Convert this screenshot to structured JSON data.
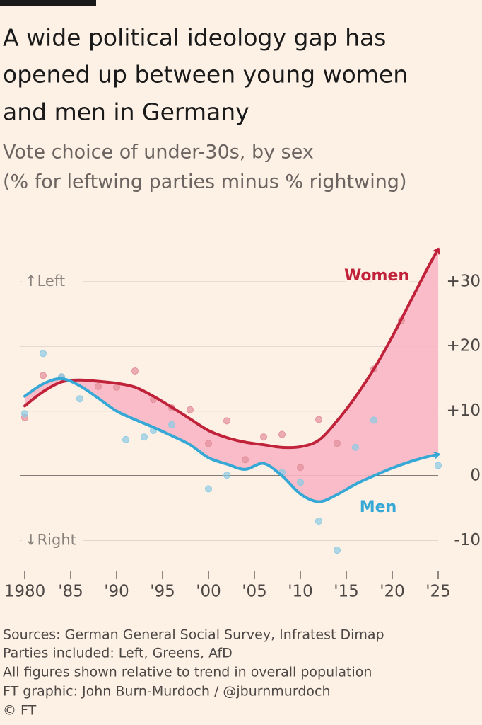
{
  "chart_data": {
    "type": "line",
    "title": [
      "A wide political ideology gap has",
      "opened up between young women",
      "and men in Germany"
    ],
    "subtitle": [
      "Vote choice of under-30s, by sex",
      "(% for leftwing parties minus % rightwing)"
    ],
    "annotations": [
      "↑Left",
      "↓Right"
    ],
    "notes": [
      "Sources: German General Social Survey, Infratest Dimap",
      "Parties included: Left, Greens, AfD",
      "All figures shown relative to trend in overall population",
      "FT graphic: John Burn-Murdoch / @jburnmurdoch",
      "© FT"
    ],
    "xlim": [
      1980,
      2025
    ],
    "xticks": [
      1980,
      {
        "value": 1985,
        "label": "'85"
      },
      {
        "value": 1990,
        "label": "'90"
      },
      {
        "value": 1995,
        "label": "'95"
      },
      {
        "value": 2000,
        "label": "'00"
      },
      {
        "value": 2005,
        "label": "'05"
      },
      {
        "value": 2010,
        "label": "'10"
      },
      {
        "value": 2015,
        "label": "'15"
      },
      {
        "value": 2020,
        "label": "'20"
      },
      {
        "value": 2025,
        "label": "'25"
      }
    ],
    "ylim": [
      -14,
      36
    ],
    "yticks": [
      -10,
      0,
      {
        "value": 10,
        "label": "+10"
      },
      {
        "value": 20,
        "label": "+20"
      },
      {
        "value": 30,
        "label": "+30"
      }
    ],
    "grid": true,
    "series": [
      {
        "type": "scatter",
        "color": "#e3909a",
        "x": [
          1980,
          1982,
          1984,
          1988,
          1990,
          1992,
          1994,
          1996,
          1998,
          2000,
          2002,
          2004,
          2006,
          2008,
          2010,
          2012,
          2014,
          2018,
          2021
        ],
        "values": [
          9,
          15.5,
          15.3,
          13.8,
          13.7,
          16.2,
          11.8,
          10.5,
          10.2,
          5,
          8.5,
          2.5,
          6,
          6.4,
          1.3,
          8.7,
          5,
          16.5,
          24
        ]
      },
      {
        "type": "scatter",
        "color": "#8ccbe3",
        "x": [
          1980,
          1982,
          1984,
          1986,
          1991,
          1993,
          1994,
          1996,
          2000,
          2002,
          2008,
          2010,
          2012,
          2014,
          2016,
          2018,
          2025
        ],
        "values": [
          9.6,
          18.9,
          15.3,
          11.9,
          5.6,
          6,
          7,
          7.9,
          -2,
          0.1,
          0.5,
          -1,
          -7,
          -11.5,
          4.4,
          8.6,
          1.6
        ]
      },
      {
        "type": "line",
        "name": "Women",
        "color": "#c0223a",
        "x": [
          1980,
          1982,
          1984,
          1986,
          1988,
          1990,
          1992,
          1994,
          1996,
          1998,
          2000,
          2002,
          2004,
          2006,
          2008,
          2010,
          2012,
          2014,
          2016,
          2018,
          2020,
          2022,
          2024,
          2025
        ],
        "values": [
          10.8,
          13,
          14.5,
          14.8,
          14.6,
          14.3,
          13.7,
          12.3,
          10.6,
          8.8,
          7,
          5.9,
          5.2,
          4.8,
          4.4,
          4.5,
          5.5,
          8.5,
          12.2,
          16.5,
          21.5,
          27,
          32.5,
          35
        ]
      },
      {
        "type": "line",
        "name": "Men",
        "color": "#35a8d6",
        "x": [
          1980,
          1982,
          1984,
          1986,
          1988,
          1990,
          1992,
          1994,
          1996,
          1998,
          2000,
          2002,
          2004,
          2006,
          2008,
          2010,
          2012,
          2014,
          2016,
          2018,
          2020,
          2022,
          2024,
          2025
        ],
        "values": [
          12.3,
          14.2,
          15,
          13.9,
          12,
          10,
          8.7,
          7.5,
          6.2,
          4.8,
          2.8,
          1.8,
          1,
          1.9,
          0,
          -2.8,
          -4,
          -2.9,
          -1.3,
          0,
          1.2,
          2.2,
          3,
          3.3
        ]
      }
    ]
  }
}
